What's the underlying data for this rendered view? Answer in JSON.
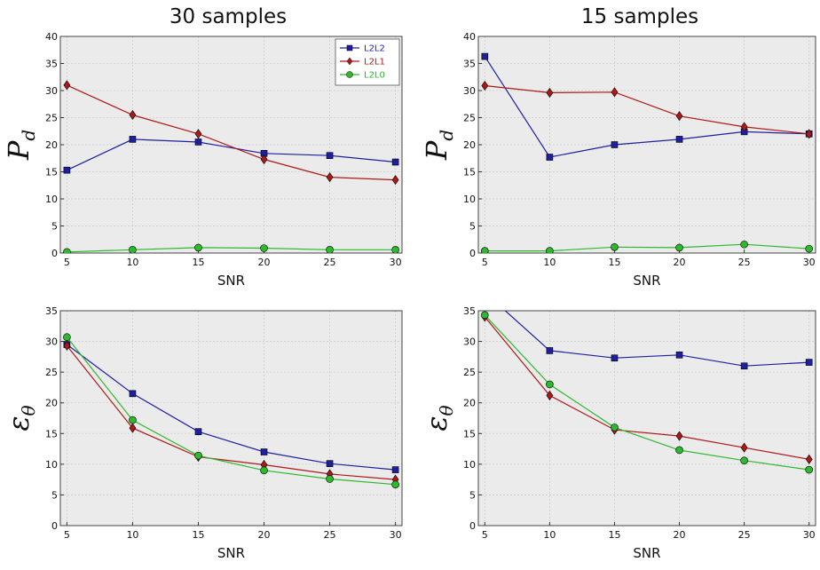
{
  "columns": [
    {
      "title": "30 samples"
    },
    {
      "title": "15 samples"
    }
  ],
  "colors": {
    "L2L2": "#1f1fa0",
    "L2L1": "#b01818",
    "L2L0": "#2db82d",
    "plot_bg": "#ebebeb",
    "grid": "#cccccc"
  },
  "chart_data": [
    {
      "type": "line",
      "title": "30 samples",
      "xlabel": "SNR",
      "ylabel": "P_d",
      "x": [
        5,
        10,
        15,
        20,
        25,
        30
      ],
      "xlim": [
        4.5,
        30.5
      ],
      "ylim": [
        0,
        40
      ],
      "xticks": [
        5,
        10,
        15,
        20,
        25,
        30
      ],
      "yticks": [
        0,
        5,
        10,
        15,
        20,
        25,
        30,
        35,
        40
      ],
      "grid": true,
      "legend": "top-right",
      "series": [
        {
          "name": "L2L2",
          "marker": "square",
          "values": [
            15.3,
            21.0,
            20.5,
            18.4,
            18.0,
            16.8
          ]
        },
        {
          "name": "L2L1",
          "marker": "diamond",
          "values": [
            31.0,
            25.5,
            22.0,
            17.3,
            14.0,
            13.5
          ]
        },
        {
          "name": "L2L0",
          "marker": "circle",
          "values": [
            0.2,
            0.6,
            1.0,
            0.9,
            0.6,
            0.6
          ]
        }
      ]
    },
    {
      "type": "line",
      "title": "15 samples",
      "xlabel": "SNR",
      "ylabel": "P_d",
      "x": [
        5,
        10,
        15,
        20,
        25,
        30
      ],
      "xlim": [
        4.5,
        30.5
      ],
      "ylim": [
        0,
        40
      ],
      "xticks": [
        5,
        10,
        15,
        20,
        25,
        30
      ],
      "yticks": [
        0,
        5,
        10,
        15,
        20,
        25,
        30,
        35,
        40
      ],
      "grid": true,
      "series": [
        {
          "name": "L2L2",
          "marker": "square",
          "values": [
            36.3,
            17.7,
            20.0,
            21.0,
            22.4,
            22.0
          ]
        },
        {
          "name": "L2L1",
          "marker": "diamond",
          "values": [
            30.9,
            29.6,
            29.7,
            25.3,
            23.3,
            22.0
          ]
        },
        {
          "name": "L2L0",
          "marker": "circle",
          "values": [
            0.4,
            0.4,
            1.1,
            1.0,
            1.6,
            0.8
          ]
        }
      ]
    },
    {
      "type": "line",
      "title": "",
      "xlabel": "SNR",
      "ylabel": "ε_θ",
      "x": [
        5,
        10,
        15,
        20,
        25,
        30
      ],
      "xlim": [
        4.5,
        30.5
      ],
      "ylim": [
        0,
        35
      ],
      "xticks": [
        5,
        10,
        15,
        20,
        25,
        30
      ],
      "yticks": [
        0,
        5,
        10,
        15,
        20,
        25,
        30,
        35
      ],
      "grid": true,
      "series": [
        {
          "name": "L2L2",
          "marker": "square",
          "values": [
            29.5,
            21.5,
            15.3,
            12.0,
            10.1,
            9.1
          ]
        },
        {
          "name": "L2L1",
          "marker": "diamond",
          "values": [
            29.3,
            15.9,
            11.2,
            9.9,
            8.4,
            7.5
          ]
        },
        {
          "name": "L2L0",
          "marker": "circle",
          "values": [
            30.7,
            17.2,
            11.4,
            9.0,
            7.6,
            6.7
          ]
        }
      ]
    },
    {
      "type": "line",
      "title": "",
      "xlabel": "SNR",
      "ylabel": "ε_θ",
      "x": [
        5,
        10,
        15,
        20,
        25,
        30
      ],
      "xlim": [
        4.5,
        30.5
      ],
      "ylim": [
        0,
        35
      ],
      "xticks": [
        5,
        10,
        15,
        20,
        25,
        30
      ],
      "yticks": [
        0,
        5,
        10,
        15,
        20,
        25,
        30,
        35
      ],
      "grid": true,
      "series": [
        {
          "name": "L2L2",
          "marker": "square",
          "values": [
            38.0,
            28.5,
            27.3,
            27.8,
            26.0,
            26.6
          ]
        },
        {
          "name": "L2L1",
          "marker": "diamond",
          "values": [
            34.0,
            21.2,
            15.6,
            14.6,
            12.7,
            10.8
          ]
        },
        {
          "name": "L2L0",
          "marker": "circle",
          "values": [
            34.3,
            23.0,
            16.0,
            12.3,
            10.6,
            9.1
          ]
        }
      ]
    }
  ]
}
